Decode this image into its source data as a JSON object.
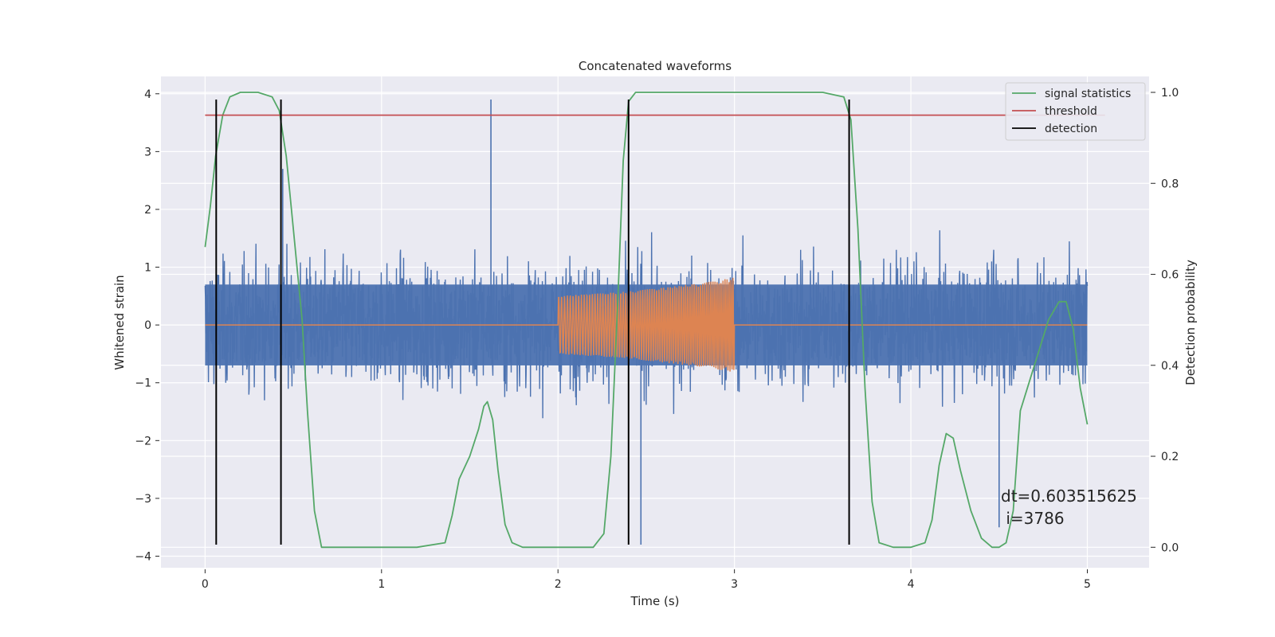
{
  "chart_data": {
    "type": "line",
    "title": "Concatenated waveforms",
    "xlabel": "Time (s)",
    "ylabel": "Whitened strain",
    "ylabel_right": "Detection probability",
    "xlim": [
      -0.25,
      5.35
    ],
    "ylim": [
      -4.2,
      4.3
    ],
    "ylim_right": [
      -0.045,
      1.035
    ],
    "x_ticks": [
      0,
      1,
      2,
      3,
      4,
      5
    ],
    "y_ticks": [
      -4,
      -3,
      -2,
      -1,
      0,
      1,
      2,
      3,
      4
    ],
    "y_ticks_right": [
      0.0,
      0.2,
      0.4,
      0.6,
      0.8,
      1.0
    ],
    "y_tick_labels": [
      "−4",
      "−3",
      "−2",
      "−1",
      "0",
      "1",
      "2",
      "3",
      "4"
    ],
    "y_tick_labels_right": [
      "0.0",
      "0.2",
      "0.4",
      "0.6",
      "0.8",
      "1.0"
    ],
    "x_tick_labels": [
      "0",
      "1",
      "2",
      "3",
      "4",
      "5"
    ],
    "grid": true,
    "background": "#eaeaf2",
    "legend_position": "top-right",
    "series": [
      {
        "name": "",
        "axis": "left",
        "color": "#4c72b0",
        "kind": "noise",
        "x_range": [
          0,
          5
        ],
        "envelope": 2.4,
        "extremes": [
          [
            1.62,
            3.9
          ],
          [
            2.47,
            -3.8
          ],
          [
            0.44,
            2.7
          ],
          [
            4.5,
            -3.5
          ]
        ]
      },
      {
        "name": "",
        "axis": "left",
        "color": "#dd8452",
        "kind": "chirp",
        "x": [
          0,
          2.0,
          2.4,
          2.8,
          3.0,
          3.01,
          5
        ],
        "amplitude": [
          0,
          0.5,
          0.58,
          0.72,
          0.82,
          0,
          0
        ]
      },
      {
        "name": "signal statistics",
        "axis": "right",
        "color": "#55a868",
        "x": [
          0,
          0.03,
          0.06,
          0.1,
          0.14,
          0.2,
          0.3,
          0.38,
          0.42,
          0.46,
          0.5,
          0.55,
          0.58,
          0.62,
          0.66,
          0.8,
          1.0,
          1.2,
          1.36,
          1.4,
          1.44,
          1.5,
          1.55,
          1.58,
          1.6,
          1.63,
          1.66,
          1.7,
          1.74,
          1.8,
          2.0,
          2.2,
          2.26,
          2.3,
          2.34,
          2.37,
          2.4,
          2.44,
          2.5,
          3.0,
          3.5,
          3.62,
          3.66,
          3.7,
          3.74,
          3.78,
          3.82,
          3.9,
          4.0,
          4.08,
          4.12,
          4.16,
          4.2,
          4.24,
          4.28,
          4.34,
          4.4,
          4.46,
          4.5,
          4.54,
          4.58,
          4.62,
          4.7,
          4.78,
          4.84,
          4.88,
          4.92,
          4.96,
          5.0
        ],
        "values": [
          0.66,
          0.75,
          0.86,
          0.95,
          0.99,
          1.0,
          1.0,
          0.99,
          0.96,
          0.86,
          0.7,
          0.5,
          0.3,
          0.08,
          0.0,
          0.0,
          0.0,
          0.0,
          0.01,
          0.07,
          0.15,
          0.2,
          0.26,
          0.31,
          0.32,
          0.28,
          0.17,
          0.05,
          0.01,
          0.0,
          0.0,
          0.0,
          0.03,
          0.2,
          0.55,
          0.85,
          0.98,
          1.0,
          1.0,
          1.0,
          1.0,
          0.99,
          0.94,
          0.7,
          0.35,
          0.1,
          0.01,
          0.0,
          0.0,
          0.01,
          0.06,
          0.18,
          0.25,
          0.24,
          0.17,
          0.08,
          0.02,
          0.0,
          0.0,
          0.01,
          0.08,
          0.3,
          0.4,
          0.5,
          0.54,
          0.54,
          0.48,
          0.35,
          0.27
        ]
      },
      {
        "name": "threshold",
        "axis": "right",
        "color": "#c44e52",
        "x": [
          0,
          5.1
        ],
        "values": [
          0.95,
          0.95
        ]
      },
      {
        "name": "detection",
        "axis": "left",
        "color": "#000000",
        "kind": "vlines",
        "x": [
          0.063,
          0.43,
          2.4,
          3.65
        ],
        "ymin": -3.8,
        "ymax": 3.9
      }
    ],
    "annotation": {
      "line1": "dt=0.603515625",
      "line2": " i=3786",
      "x": 4.5,
      "y": -3.3
    }
  }
}
